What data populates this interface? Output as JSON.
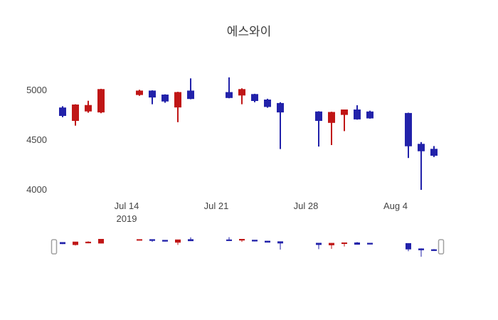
{
  "title": "에스와이",
  "colors": {
    "increasing": "#c01616",
    "decreasing": "#2222aa",
    "axis_text": "#444444",
    "title_text": "#3d3d3d",
    "handle_border": "#a0a0a0"
  },
  "y_axis": {
    "ticks": [
      "5000",
      "4500",
      "4000"
    ]
  },
  "x_axis": {
    "ticks": [
      {
        "label": "Jul 14",
        "sublabel": "2019"
      },
      {
        "label": "Jul 21"
      },
      {
        "label": "Jul 28"
      },
      {
        "label": "Aug 4"
      }
    ]
  },
  "range_slider": {
    "visible": true
  },
  "chart_data": {
    "type": "candlestick",
    "title": "에스와이",
    "x": [
      "2019-07-09",
      "2019-07-10",
      "2019-07-11",
      "2019-07-12",
      "2019-07-15",
      "2019-07-16",
      "2019-07-17",
      "2019-07-18",
      "2019-07-19",
      "2019-07-22",
      "2019-07-23",
      "2019-07-24",
      "2019-07-25",
      "2019-07-26",
      "2019-07-29",
      "2019-07-30",
      "2019-07-31",
      "2019-08-01",
      "2019-08-02",
      "2019-08-05",
      "2019-08-06",
      "2019-08-07"
    ],
    "open": [
      4820,
      4700,
      4795,
      4785,
      4960,
      4990,
      4950,
      4835,
      4990,
      4975,
      4955,
      4955,
      4900,
      4865,
      4780,
      4680,
      4760,
      4800,
      4780,
      4765,
      4455,
      4405
    ],
    "high": [
      4840,
      4860,
      4895,
      5015,
      5005,
      5000,
      4960,
      4985,
      5120,
      5130,
      5020,
      4965,
      4915,
      4880,
      4790,
      4785,
      4805,
      4850,
      4795,
      4775,
      4480,
      4440
    ],
    "low": [
      4730,
      4645,
      4775,
      4770,
      4945,
      4860,
      4875,
      4680,
      4910,
      4920,
      4860,
      4880,
      4825,
      4410,
      4435,
      4450,
      4590,
      4705,
      4715,
      4320,
      4000,
      4330
    ],
    "close": [
      4750,
      4850,
      4845,
      5005,
      4990,
      4935,
      4895,
      4975,
      4920,
      4930,
      5005,
      4900,
      4840,
      4785,
      4700,
      4775,
      4800,
      4715,
      4725,
      4445,
      4395,
      4350
    ],
    "increasing_color": "#c01616",
    "decreasing_color": "#2222aa",
    "ylim": [
      3900,
      5250
    ],
    "yticks": [
      4000,
      4500,
      5000
    ],
    "xticks": [
      "Jul 14",
      "Jul 21",
      "Jul 28",
      "Aug 4"
    ],
    "grid": false,
    "legend": false,
    "rangeslider": true
  }
}
